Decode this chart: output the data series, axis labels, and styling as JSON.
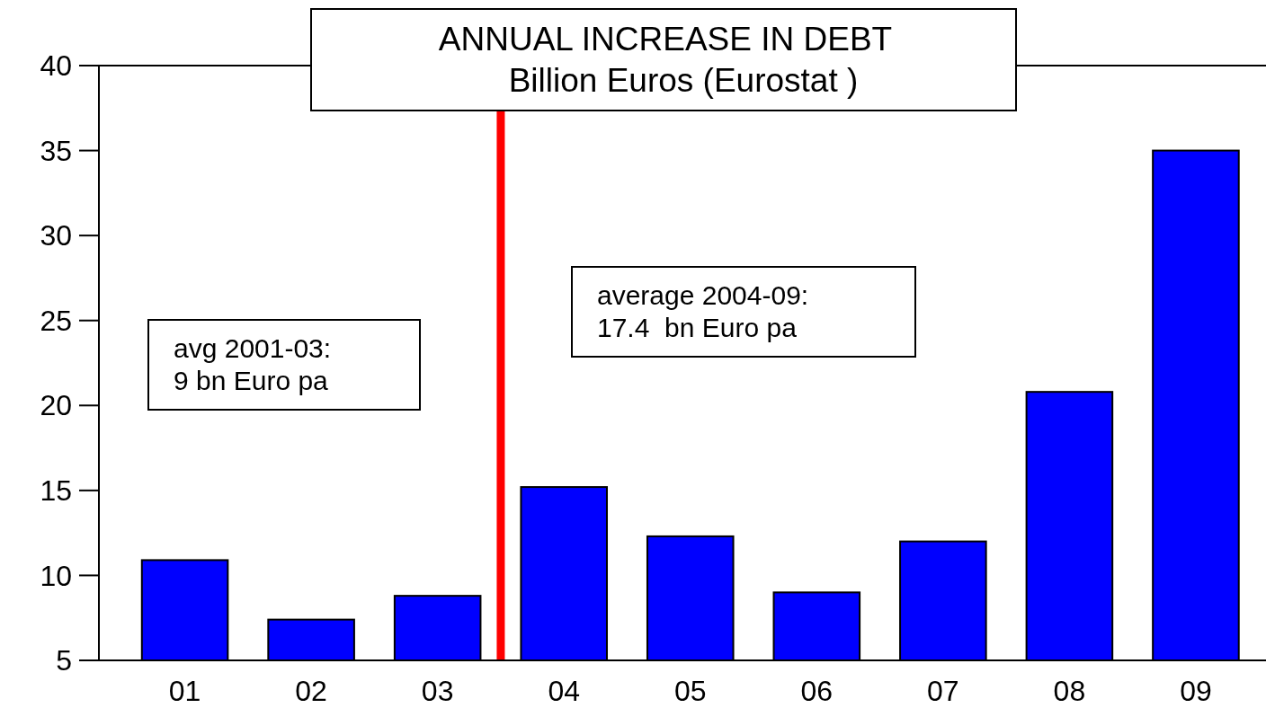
{
  "chart_data": {
    "type": "bar",
    "title": "ANNUAL INCREASE IN DEBT",
    "subtitle": "Billion Euros (Eurostat )",
    "x": [
      1,
      2,
      3,
      4,
      5,
      6,
      7,
      8,
      9
    ],
    "values": [
      10.9,
      7.4,
      8.8,
      15.2,
      12.3,
      9.0,
      12.0,
      20.8,
      35.0
    ],
    "color": "#0000ff",
    "xlim": [
      0.32,
      9.84
    ],
    "xticks": [
      {
        "value": 1,
        "label": "01"
      },
      {
        "value": 2,
        "label": "02"
      },
      {
        "value": 3,
        "label": "03"
      },
      {
        "value": 4,
        "label": "04"
      },
      {
        "value": 5,
        "label": "05"
      },
      {
        "value": 6,
        "label": "06"
      },
      {
        "value": 7,
        "label": "07"
      },
      {
        "value": 8,
        "label": "08"
      },
      {
        "value": 9,
        "label": "09"
      }
    ],
    "ylim": [
      5,
      40
    ],
    "yticks": [
      5,
      10,
      15,
      20,
      25,
      30,
      35,
      40
    ],
    "grid": false,
    "ref_lines": [
      {
        "axis": "x",
        "value": 3.5,
        "color": "#ff0000"
      }
    ],
    "annotations": [
      "avg 2001-03:\n9 bn Euro pa",
      "average 2004-09:\n17.4  bn Euro pa"
    ]
  }
}
